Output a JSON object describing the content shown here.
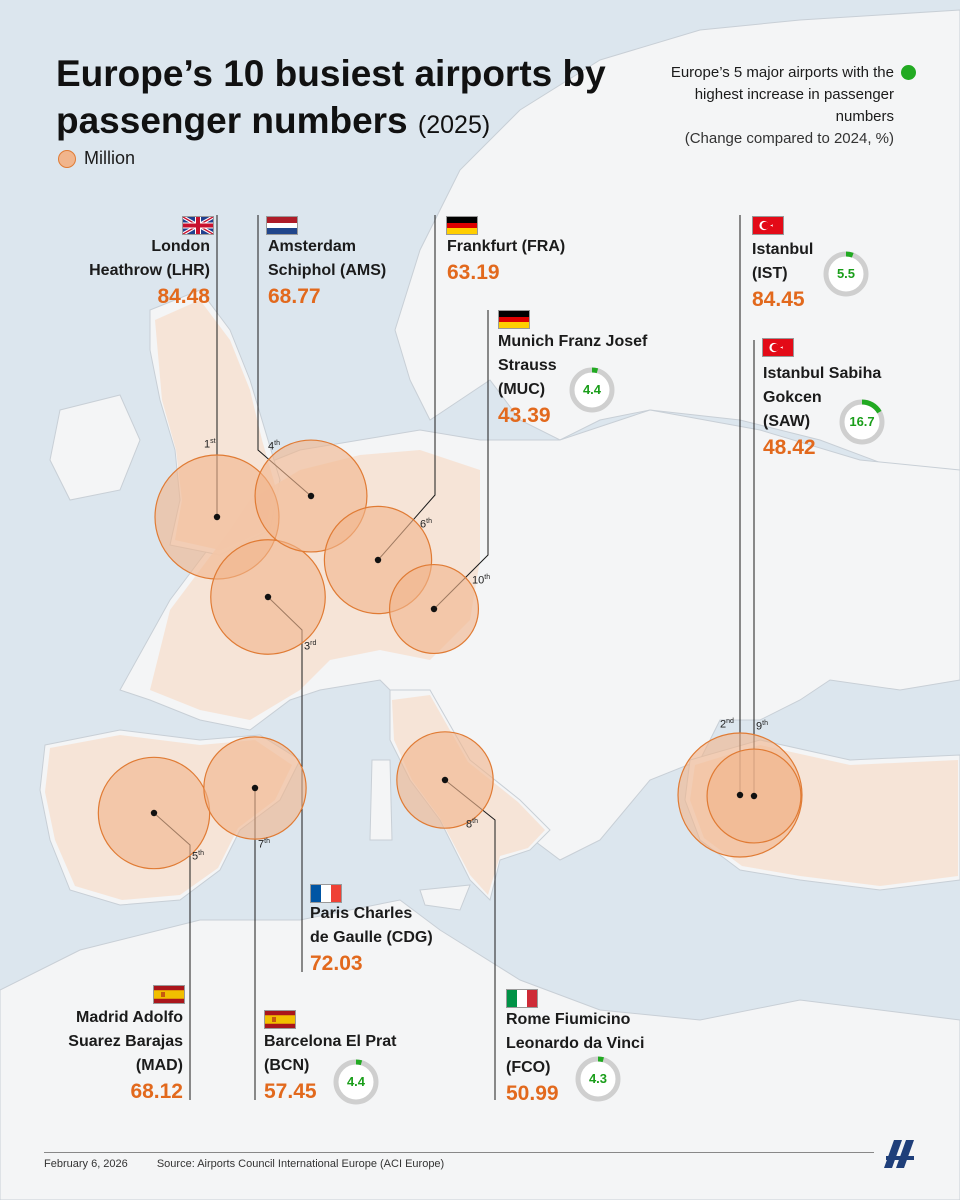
{
  "title_main": "Europe’s 10 busiest airports by passenger numbers",
  "title_year": "(2025)",
  "legend_unit": "Million",
  "legend_increase": "Europe’s 5 major airports with the highest increase in passenger numbers",
  "legend_increase_sub": "(Change compared to 2024, %)",
  "date": "February 6, 2026",
  "source": "Source: Airports Council International Europe (ACI Europe)",
  "colors": {
    "bubble_fill": "#f1b58c",
    "bubble_stroke": "#e07b34",
    "value": "#e2691d",
    "gauge_green": "#22aa22"
  },
  "airports": [
    {
      "name": "London Heathrow (LHR)",
      "lines": [
        "London",
        "Heathrow (LHR)"
      ],
      "value": 84.48,
      "value_label": "84.48",
      "rank": "1",
      "rank_suffix": "st",
      "flag": "uk-flag",
      "increase": null
    },
    {
      "name": "Istanbul (IST)",
      "lines": [
        "Istanbul",
        "(IST)"
      ],
      "value": 84.45,
      "value_label": "84.45",
      "rank": "2",
      "rank_suffix": "nd",
      "flag": "turkey-flag",
      "increase": 5.5,
      "increase_label": "5.5"
    },
    {
      "name": "Paris Charles de Gaulle (CDG)",
      "lines": [
        "Paris Charles",
        "de Gaulle (CDG)"
      ],
      "value": 72.03,
      "value_label": "72.03",
      "rank": "3",
      "rank_suffix": "rd",
      "flag": "france-flag",
      "increase": null
    },
    {
      "name": "Amsterdam Schiphol (AMS)",
      "lines": [
        "Amsterdam",
        "Schiphol (AMS)"
      ],
      "value": 68.77,
      "value_label": "68.77",
      "rank": "4",
      "rank_suffix": "th",
      "flag": "netherlands-flag",
      "increase": null
    },
    {
      "name": "Madrid Adolfo Suarez Barajas (MAD)",
      "lines": [
        "Madrid Adolfo",
        "Suarez Barajas",
        "(MAD)"
      ],
      "value": 68.12,
      "value_label": "68.12",
      "rank": "5",
      "rank_suffix": "th",
      "flag": "spain-flag",
      "increase": null
    },
    {
      "name": "Frankfurt (FRA)",
      "lines": [
        "Frankfurt (FRA)"
      ],
      "value": 63.19,
      "value_label": "63.19",
      "rank": "6",
      "rank_suffix": "th",
      "flag": "germany-flag",
      "increase": null
    },
    {
      "name": "Barcelona El Prat (BCN)",
      "lines": [
        "Barcelona El Prat",
        "(BCN)"
      ],
      "value": 57.45,
      "value_label": "57.45",
      "rank": "7",
      "rank_suffix": "th",
      "flag": "spain-flag",
      "increase": 4.4,
      "increase_label": "4.4"
    },
    {
      "name": "Rome Fiumicino Leonardo da Vinci (FCO)",
      "lines": [
        "Rome Fiumicino",
        "Leonardo da Vinci",
        "(FCO)"
      ],
      "value": 50.99,
      "value_label": "50.99",
      "rank": "8",
      "rank_suffix": "th",
      "flag": "italy-flag",
      "increase": 4.3,
      "increase_label": "4.3"
    },
    {
      "name": "Istanbul Sabiha Gokcen (SAW)",
      "lines": [
        "Istanbul Sabiha",
        "Gokcen",
        "(SAW)"
      ],
      "value": 48.42,
      "value_label": "48.42",
      "rank": "9",
      "rank_suffix": "th",
      "flag": "turkey-flag",
      "increase": 16.7,
      "increase_label": "16.7"
    },
    {
      "name": "Munich Franz Josef Strauss (MUC)",
      "lines": [
        "Munich Franz Josef",
        "Strauss",
        "(MUC)"
      ],
      "value": 43.39,
      "value_label": "43.39",
      "rank": "10",
      "rank_suffix": "th",
      "flag": "germany-flag",
      "increase": 4.4,
      "increase_label": "4.4"
    }
  ]
}
